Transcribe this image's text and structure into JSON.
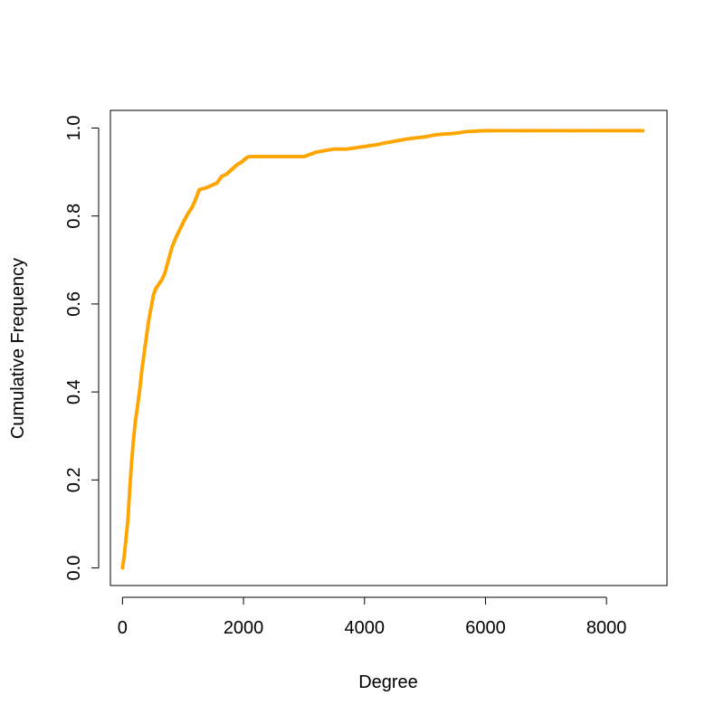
{
  "chart_data": {
    "type": "scatter",
    "title": "",
    "xlabel": "Degree",
    "ylabel": "Cumulative Frequency",
    "xlim": [
      -200,
      9000
    ],
    "ylim": [
      -0.04,
      1.04
    ],
    "x_ticks": [
      0,
      2000,
      4000,
      6000,
      8000
    ],
    "x_tick_labels": [
      "0",
      "2000",
      "4000",
      "6000",
      "8000"
    ],
    "y_ticks": [
      0.0,
      0.2,
      0.4,
      0.6,
      0.8,
      1.0
    ],
    "y_tick_labels": [
      "0.0",
      "0.2",
      "0.4",
      "0.6",
      "0.8",
      "1.0"
    ],
    "grid": false,
    "point_color": "#FFA500",
    "series": [
      {
        "name": "",
        "x": [
          0,
          30,
          60,
          90,
          120,
          150,
          180,
          210,
          250,
          280,
          320,
          360,
          400,
          430,
          470,
          510,
          550,
          600,
          650,
          700,
          760,
          820,
          880,
          950,
          1020,
          1080,
          1150,
          1200,
          1270,
          1330,
          1400,
          1480,
          1560,
          1640,
          1720,
          1800,
          1880,
          1960,
          2060,
          2100,
          2300,
          2600,
          3000,
          3100,
          3200,
          3400,
          3500,
          3700,
          4000,
          4200,
          4300,
          4700,
          5000,
          5200,
          5500,
          5700,
          6000,
          6500,
          7000,
          7500,
          8000,
          8600
        ],
        "y": [
          0.0,
          0.03,
          0.07,
          0.11,
          0.18,
          0.24,
          0.29,
          0.33,
          0.37,
          0.4,
          0.45,
          0.49,
          0.53,
          0.56,
          0.59,
          0.62,
          0.635,
          0.645,
          0.655,
          0.67,
          0.7,
          0.73,
          0.75,
          0.77,
          0.79,
          0.805,
          0.82,
          0.835,
          0.86,
          0.862,
          0.865,
          0.87,
          0.875,
          0.89,
          0.895,
          0.905,
          0.915,
          0.922,
          0.933,
          0.935,
          0.935,
          0.935,
          0.935,
          0.94,
          0.945,
          0.95,
          0.952,
          0.952,
          0.958,
          0.962,
          0.965,
          0.975,
          0.98,
          0.985,
          0.988,
          0.992,
          0.994,
          0.994,
          0.994,
          0.994,
          0.994,
          0.994
        ]
      }
    ]
  }
}
